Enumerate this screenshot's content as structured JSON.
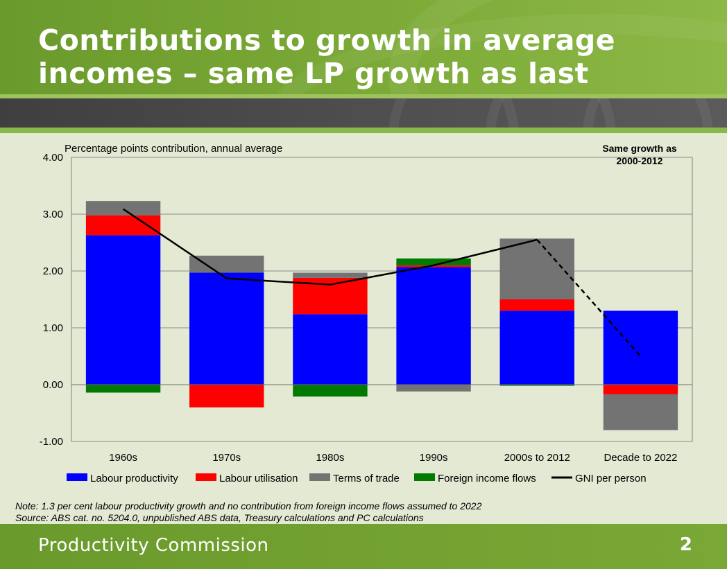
{
  "slide": {
    "title": "Contributions to growth in average incomes – same LP growth as last ‘decade’",
    "note": "Note: 1.3 per cent labour productivity growth and no contribution from foreign income flows assumed to 2022",
    "source": "Source: ABS cat. no. 5204.0, unpublished ABS data, Treasury calculations and PC calculations",
    "footer_org": "Productivity Commission",
    "page_number": "2"
  },
  "chart_data": {
    "type": "bar",
    "stacked": true,
    "title": "",
    "ylabel": "Percentage points contribution, annual average",
    "annotation": [
      "Same growth as",
      "2000-2012"
    ],
    "categories": [
      "1960s",
      "1970s",
      "1980s",
      "1990s",
      "2000s to 2012",
      "Decade to 2022"
    ],
    "ylim": [
      -1.0,
      4.0
    ],
    "yticks": [
      -1.0,
      0.0,
      1.0,
      2.0,
      3.0,
      4.0
    ],
    "ytick_labels": [
      "-1.00",
      "0.00",
      "1.00",
      "2.00",
      "3.00",
      "4.00"
    ],
    "grid": true,
    "legend_position": "bottom",
    "series": [
      {
        "name": "Labour productivity",
        "color": "#0000ff",
        "values": [
          2.63,
          1.97,
          1.24,
          2.07,
          1.3,
          1.3
        ]
      },
      {
        "name": "Labour utilisation",
        "color": "#ff0000",
        "values": [
          0.35,
          -0.4,
          0.64,
          0.03,
          0.2,
          -0.17
        ]
      },
      {
        "name": "Terms of trade",
        "color": "#737373",
        "values": [
          0.25,
          0.3,
          0.09,
          -0.12,
          1.07,
          -0.63
        ]
      },
      {
        "name": "Foreign income flows",
        "color": "#007a00",
        "values": [
          -0.14,
          0.0,
          -0.21,
          0.12,
          -0.02,
          0.0
        ]
      }
    ],
    "line": {
      "name": "GNI per person",
      "color": "#000000",
      "values": [
        3.09,
        1.87,
        1.76,
        2.1,
        2.55,
        0.5
      ],
      "dashed_from_index": 4
    }
  }
}
